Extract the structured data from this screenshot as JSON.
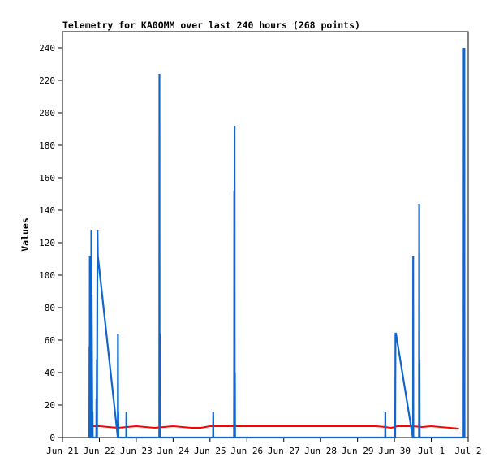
{
  "chart_data": {
    "type": "line",
    "title": "Telemetry for KA0OMM over last 240 hours (268 points)",
    "xlabel": "",
    "ylabel": "Values",
    "ylim": [
      0,
      250
    ],
    "yticks": [
      0,
      20,
      40,
      60,
      80,
      100,
      120,
      140,
      160,
      180,
      200,
      220,
      240
    ],
    "xlim": [
      "2024-06-21",
      "2024-07-02"
    ],
    "xticks": [
      {
        "label": "Jun 21",
        "t": "2024-06-21"
      },
      {
        "label": "Jun 22",
        "t": "2024-06-22"
      },
      {
        "label": "Jun 23",
        "t": "2024-06-23"
      },
      {
        "label": "Jun 24",
        "t": "2024-06-24"
      },
      {
        "label": "Jun 25",
        "t": "2024-06-25"
      },
      {
        "label": "Jun 26",
        "t": "2024-06-26"
      },
      {
        "label": "Jun 27",
        "t": "2024-06-27"
      },
      {
        "label": "Jun 28",
        "t": "2024-06-28"
      },
      {
        "label": "Jun 29",
        "t": "2024-06-29"
      },
      {
        "label": "Jun 30",
        "t": "2024-06-30"
      },
      {
        "label": "Jul 1",
        "t": "2024-07-01"
      },
      {
        "label": "Jul 2",
        "t": "2024-07-02"
      }
    ],
    "grid": false,
    "series": [
      {
        "color": "#ff0000",
        "x": [
          "2024-06-21T17:00",
          "2024-06-21T20:00",
          "2024-06-22T00:00",
          "2024-06-22T06:00",
          "2024-06-22T12:00",
          "2024-06-22T18:00",
          "2024-06-23T00:00",
          "2024-06-23T06:00",
          "2024-06-23T12:00",
          "2024-06-23T18:00",
          "2024-06-24T00:00",
          "2024-06-24T06:00",
          "2024-06-24T12:00",
          "2024-06-24T18:00",
          "2024-06-25T00:00",
          "2024-06-26T00:00",
          "2024-06-27T00:00",
          "2024-06-28T00:00",
          "2024-06-29T00:00",
          "2024-06-29T12:00",
          "2024-06-29T18:00",
          "2024-06-29T22:00",
          "2024-06-30T02:00",
          "2024-06-30T12:00",
          "2024-06-30T18:00",
          "2024-07-01T00:00",
          "2024-07-01T06:00",
          "2024-07-01T12:00",
          "2024-07-01T18:00"
        ],
        "values": [
          7,
          7,
          7,
          6.5,
          6,
          6.5,
          7,
          6.5,
          6,
          6.5,
          7,
          6.5,
          6,
          6,
          7,
          7,
          7,
          7,
          7,
          7,
          6.5,
          6,
          7,
          7,
          6.5,
          7,
          6.5,
          6,
          5.5
        ]
      },
      {
        "color": "#1166cc",
        "x": [
          "2024-06-21T17:30",
          "2024-06-21T17:36",
          "2024-06-21T17:42",
          "2024-06-21T17:48",
          "2024-06-21T17:54",
          "2024-06-21T18:00",
          "2024-06-21T18:30",
          "2024-06-21T18:36",
          "2024-06-21T18:42",
          "2024-06-21T18:48",
          "2024-06-21T18:54",
          "2024-06-21T19:00",
          "2024-06-21T19:30",
          "2024-06-21T19:36",
          "2024-06-21T19:42",
          "2024-06-21T19:48",
          "2024-06-21T22:00",
          "2024-06-21T22:06",
          "2024-06-21T22:12",
          "2024-06-21T22:24",
          "2024-06-21T22:30",
          "2024-06-21T22:36",
          "2024-06-21T22:48",
          "2024-06-21T23:00",
          "2024-06-22T12:00",
          "2024-06-22T12:06",
          "2024-06-22T12:12",
          "2024-06-22T12:18",
          "2024-06-22T12:24",
          "2024-06-22T17:30",
          "2024-06-22T17:36",
          "2024-06-22T17:42",
          "2024-06-23T15:00",
          "2024-06-23T15:06",
          "2024-06-23T15:12",
          "2024-06-23T15:18",
          "2024-06-23T15:24",
          "2024-06-23T15:54",
          "2024-06-23T16:00",
          "2024-06-23T16:06",
          "2024-06-23T16:12",
          "2024-06-25T02:00",
          "2024-06-25T02:06",
          "2024-06-25T02:12",
          "2024-06-25T15:36",
          "2024-06-25T15:42",
          "2024-06-25T15:48",
          "2024-06-25T15:54",
          "2024-06-25T16:00",
          "2024-06-25T16:06",
          "2024-06-25T16:12",
          "2024-06-25T16:18",
          "2024-06-25T16:24",
          "2024-06-25T16:30",
          "2024-06-25T16:36",
          "2024-06-29T18:00",
          "2024-06-29T18:06",
          "2024-06-29T18:12",
          "2024-06-30T00:30",
          "2024-06-30T00:36",
          "2024-06-30T00:42",
          "2024-06-30T01:00",
          "2024-06-30T12:00",
          "2024-06-30T12:06",
          "2024-06-30T12:12",
          "2024-06-30T12:18",
          "2024-06-30T12:24",
          "2024-06-30T16:00",
          "2024-06-30T16:06",
          "2024-06-30T16:12",
          "2024-06-30T16:18",
          "2024-06-30T16:24",
          "2024-06-30T16:36",
          "2024-06-30T16:42",
          "2024-06-30T16:48",
          "2024-07-01T21:00",
          "2024-07-01T21:06",
          "2024-07-01T21:12",
          "2024-07-01T21:18",
          "2024-07-01T21:24",
          "2024-07-01T21:30",
          "2024-07-01T21:36",
          "2024-07-01T21:42",
          "2024-07-01T21:48",
          "2024-07-01T21:54",
          "2024-07-01T22:00",
          "2024-07-01T22:06",
          "2024-07-01T22:12"
        ],
        "values": [
          0,
          56,
          0,
          112,
          0,
          56,
          0,
          112,
          0,
          128,
          0,
          88,
          0,
          16,
          0,
          0,
          0,
          24,
          0,
          48,
          0,
          64,
          128,
          112,
          0,
          64,
          0,
          16,
          0,
          0,
          16,
          0,
          0,
          224,
          0,
          64,
          0,
          0,
          0,
          0,
          0,
          0,
          16,
          0,
          0,
          56,
          152,
          0,
          192,
          0,
          40,
          0,
          0,
          0,
          0,
          0,
          16,
          0,
          0,
          32,
          64,
          64,
          0,
          0,
          112,
          0,
          0,
          0,
          144,
          0,
          48,
          0,
          0,
          0,
          0,
          0,
          240,
          0,
          180,
          0,
          240,
          0,
          0,
          0,
          0,
          0,
          0,
          0
        ]
      }
    ]
  }
}
